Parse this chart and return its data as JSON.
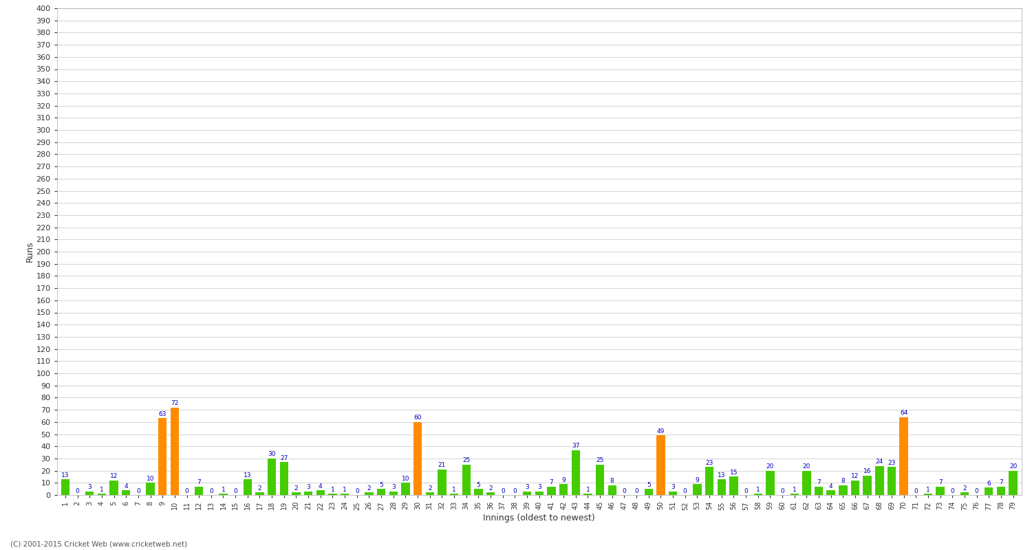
{
  "title": "",
  "xlabel": "Innings (oldest to newest)",
  "ylabel": "Runs",
  "background_color": "#ffffff",
  "plot_background": "#ffffff",
  "grid_color": "#d8d8d8",
  "bar_color_normal": "#44cc00",
  "bar_color_highlight": "#ff8c00",
  "label_color": "#0000bb",
  "ylim": [
    0,
    400
  ],
  "yticks": [
    0,
    10,
    20,
    30,
    40,
    50,
    60,
    70,
    80,
    90,
    100,
    110,
    120,
    130,
    140,
    150,
    160,
    170,
    180,
    190,
    200,
    210,
    220,
    230,
    240,
    250,
    260,
    270,
    280,
    290,
    300,
    310,
    320,
    330,
    340,
    350,
    360,
    370,
    380,
    390,
    400
  ],
  "innings": [
    1,
    2,
    3,
    4,
    5,
    6,
    7,
    8,
    9,
    10,
    11,
    12,
    13,
    14,
    15,
    16,
    17,
    18,
    19,
    20,
    21,
    22,
    23,
    24,
    25,
    26,
    27,
    28,
    29,
    30,
    31,
    32,
    33,
    34,
    35,
    36,
    37,
    38,
    39,
    40,
    41,
    42,
    43,
    44,
    45,
    46,
    47,
    48,
    49,
    50,
    51,
    52,
    53,
    54,
    55,
    56,
    57,
    58,
    59,
    60,
    61,
    62,
    63,
    64,
    65,
    66,
    67,
    68,
    69,
    70,
    71,
    72,
    73,
    74,
    75,
    76,
    77,
    78,
    79
  ],
  "values": [
    13,
    0,
    3,
    1,
    12,
    4,
    0,
    10,
    63,
    72,
    0,
    7,
    0,
    1,
    0,
    13,
    2,
    30,
    27,
    2,
    3,
    4,
    1,
    1,
    0,
    2,
    5,
    3,
    10,
    60,
    2,
    21,
    1,
    25,
    5,
    2,
    0,
    0,
    3,
    3,
    7,
    9,
    37,
    1,
    25,
    8,
    0,
    0,
    5,
    49,
    3,
    0,
    9,
    23,
    13,
    15,
    0,
    1,
    20,
    0,
    1,
    20,
    7,
    4,
    8,
    12,
    16,
    24,
    23,
    64,
    0,
    1,
    7,
    0,
    2,
    0,
    6,
    7,
    20
  ],
  "highlights": [
    9,
    10,
    30,
    50,
    70
  ],
  "footer": "(C) 2001-2015 Cricket Web (www.cricketweb.net)"
}
